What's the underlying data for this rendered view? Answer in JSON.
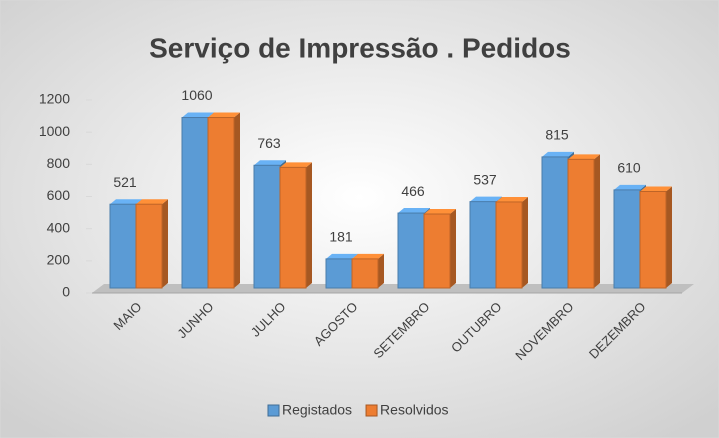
{
  "chart_data": {
    "type": "bar3d",
    "title": "Serviço de Impressão . Pedidos",
    "categories": [
      "MAIO",
      "JUNHO",
      "JULHO",
      "AGOSTO",
      "SETEMBRO",
      "OUTUBRO",
      "NOVEMBRO",
      "DEZEMBRO"
    ],
    "series": [
      {
        "name": "Registados",
        "color": "#5b9bd5",
        "values": [
          521,
          1060,
          763,
          181,
          466,
          537,
          815,
          610
        ]
      },
      {
        "name": "Resolvidos",
        "color": "#ed7d31",
        "values": [
          521,
          1060,
          750,
          181,
          460,
          535,
          800,
          600
        ]
      }
    ],
    "ylim": [
      0,
      1200
    ],
    "yticks": [
      0,
      200,
      400,
      600,
      800,
      1000,
      1200
    ],
    "legend": "bottom"
  }
}
